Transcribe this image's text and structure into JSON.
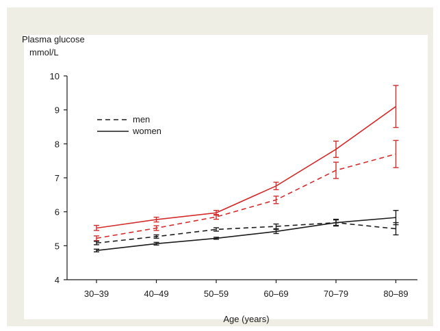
{
  "chart_data": {
    "type": "line",
    "ylabel_line1": "Plasma glucose",
    "ylabel_line2": "mmol/L",
    "xlabel": "Age (years)",
    "categories": [
      "30–39",
      "40–49",
      "50–59",
      "60–69",
      "70–79",
      "80–89"
    ],
    "ylim": [
      4,
      10
    ],
    "yticks": [
      "4",
      "5",
      "6",
      "7",
      "8",
      "9",
      "10"
    ],
    "grid": false,
    "legend": {
      "placement": "top-left",
      "entries": [
        {
          "label": "men",
          "style": "dashed"
        },
        {
          "label": "women",
          "style": "solid"
        }
      ]
    },
    "series": [
      {
        "color": "#d42a2a",
        "style": "solid",
        "values": [
          5.52,
          5.77,
          5.97,
          6.76,
          7.84,
          9.1
        ],
        "err_low": [
          5.45,
          5.7,
          5.9,
          6.65,
          7.6,
          8.48
        ],
        "err_high": [
          5.6,
          5.84,
          6.04,
          6.87,
          8.08,
          9.72
        ]
      },
      {
        "color": "#d42a2a",
        "style": "dashed",
        "values": [
          5.22,
          5.52,
          5.85,
          6.35,
          7.22,
          7.7
        ],
        "err_low": [
          5.15,
          5.45,
          5.78,
          6.24,
          6.98,
          7.3
        ],
        "err_high": [
          5.29,
          5.59,
          5.92,
          6.46,
          7.46,
          8.1
        ]
      },
      {
        "color": "#1a1a1a",
        "style": "dashed",
        "values": [
          5.08,
          5.27,
          5.48,
          5.57,
          5.68,
          5.5
        ],
        "err_low": [
          5.03,
          5.22,
          5.43,
          5.5,
          5.58,
          5.32
        ],
        "err_high": [
          5.13,
          5.32,
          5.53,
          5.64,
          5.78,
          5.68
        ]
      },
      {
        "color": "#1a1a1a",
        "style": "solid",
        "values": [
          4.86,
          5.06,
          5.22,
          5.42,
          5.68,
          5.83
        ],
        "err_low": [
          4.82,
          5.02,
          5.19,
          5.36,
          5.6,
          5.62
        ],
        "err_high": [
          4.9,
          5.1,
          5.25,
          5.48,
          5.76,
          6.04
        ]
      }
    ]
  }
}
